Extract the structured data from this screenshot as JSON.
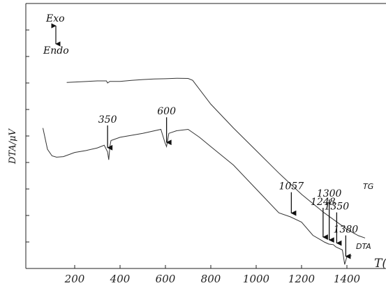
{
  "chart_data": {
    "type": "line",
    "title": "",
    "xlabel": "T(",
    "ylabel": "DTA/μV",
    "xlim": [
      60,
      1560
    ],
    "ylim": [
      0,
      100
    ],
    "xticks": [
      200,
      400,
      600,
      800,
      1000,
      1200,
      1400
    ],
    "yticks": [
      0,
      10,
      20,
      30,
      40,
      50,
      60,
      70,
      80,
      90,
      100
    ],
    "grid": false,
    "direction_labels": {
      "exo": "Exo",
      "endo": "Endo"
    },
    "series": [
      {
        "name": "TG",
        "x": [
          165,
          300,
          340,
          345,
          355,
          400,
          450,
          500,
          550,
          600,
          650,
          700,
          720,
          800,
          900,
          1000,
          1100,
          1200,
          1300,
          1400,
          1450,
          1480
        ],
        "y": [
          70.2,
          70.8,
          70.8,
          70.0,
          70.6,
          70.6,
          71.0,
          71.3,
          71.5,
          71.6,
          71.8,
          71.7,
          71.0,
          62.0,
          53.0,
          44.5,
          36.0,
          28.0,
          21.0,
          14.8,
          12.4,
          11.5
        ]
      },
      {
        "name": "DTA",
        "x": [
          60,
          80,
          100,
          120,
          150,
          200,
          250,
          300,
          330,
          345,
          350,
          355,
          360,
          400,
          500,
          580,
          598,
          605,
          615,
          650,
          700,
          750,
          800,
          900,
          1000,
          1100,
          1150,
          1200,
          1250,
          1290,
          1300,
          1320,
          1340,
          1350,
          1360,
          1380,
          1385,
          1390,
          1400,
          1420
        ],
        "y": [
          53.0,
          45.0,
          42.5,
          42.0,
          42.2,
          43.8,
          44.5,
          45.5,
          46.5,
          44.0,
          41.0,
          46.0,
          48.3,
          49.5,
          51.0,
          52.5,
          47.5,
          46.0,
          51.0,
          52.0,
          52.5,
          49.5,
          46.0,
          39.0,
          30.0,
          21.0,
          19.5,
          17.5,
          12.5,
          10.5,
          10.0,
          9.2,
          9.0,
          8.2,
          7.8,
          7.0,
          4.5,
          1.5,
          4.5,
          4.8
        ]
      }
    ],
    "annotations": [
      {
        "text": "350",
        "x": 345
      },
      {
        "text": "600",
        "x": 605
      },
      {
        "text": "1057",
        "x": 1155
      },
      {
        "text": "1248",
        "x": 1295
      },
      {
        "text": "1300",
        "x": 1322
      },
      {
        "text": "1350",
        "x": 1355
      },
      {
        "text": "1380",
        "x": 1395
      }
    ]
  }
}
